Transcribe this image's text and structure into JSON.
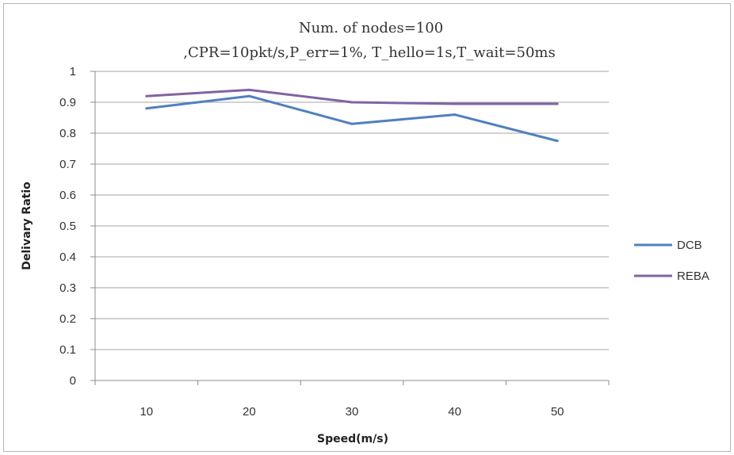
{
  "chart_data": {
    "type": "line",
    "title": "Num. of nodes=100",
    "subtitle": ",CPR=10pkt/s,P_err=1%, T_hello=1s,T_wait=50ms",
    "xlabel": "Speed(m/s)",
    "ylabel": "Delivary Ratio",
    "categories": [
      "10",
      "20",
      "30",
      "40",
      "50"
    ],
    "ylim": [
      0,
      1
    ],
    "yticks": [
      "0",
      "0.1",
      "0.2",
      "0.3",
      "0.4",
      "0.5",
      "0.6",
      "0.7",
      "0.8",
      "0.9",
      "1"
    ],
    "grid": true,
    "legend_position": "right",
    "series": [
      {
        "name": "DCB",
        "color": "#4f81bd",
        "values": [
          0.88,
          0.92,
          0.83,
          0.86,
          0.775
        ]
      },
      {
        "name": "REBA",
        "color": "#8064a2",
        "values": [
          0.92,
          0.94,
          0.9,
          0.895,
          0.895
        ]
      }
    ]
  }
}
